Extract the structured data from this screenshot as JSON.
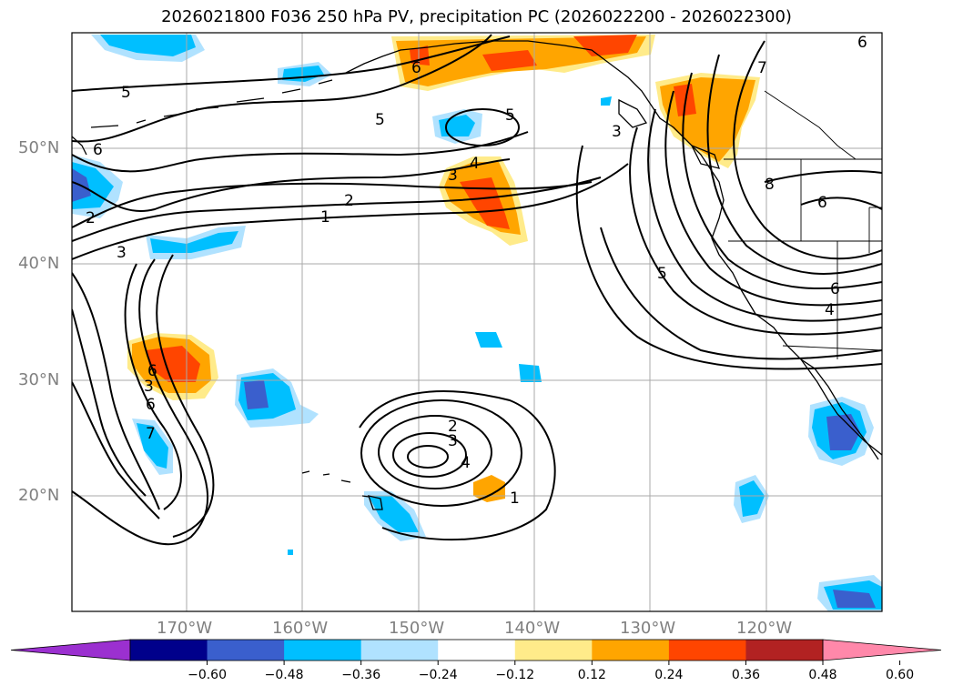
{
  "title": "2026021800 F036 250 hPa PV, precipitation PC (2026022200 - 2026022300)",
  "lat_labels": [
    "50°N",
    "40°N",
    "30°N",
    "20°N"
  ],
  "lon_labels": [
    "170°W",
    "160°W",
    "150°W",
    "140°W",
    "130°W",
    "120°W"
  ],
  "colorbar": {
    "ticks": [
      "−0.60",
      "−0.48",
      "−0.36",
      "−0.24",
      "−0.12",
      "0.12",
      "0.24",
      "0.36",
      "0.48",
      "0.60"
    ],
    "colors": [
      "#9b30d0",
      "#00008b",
      "#3a5fcd",
      "#00bfff",
      "#b0e2ff",
      "#ffffff",
      "#ffeb8a",
      "#ffa500",
      "#ff4500",
      "#b22222",
      "#ff88aa"
    ]
  },
  "contour_labels": [
    "5",
    "6",
    "5",
    "5",
    "6",
    "3",
    "6",
    "2",
    "3",
    "4",
    "2",
    "1",
    "3",
    "6",
    "8",
    "6",
    "7",
    "5",
    "6",
    "4",
    "3",
    "6",
    "7",
    "2",
    "3",
    "4",
    "1"
  ],
  "legend_notes": {
    "shading": "precipitation PC",
    "contours": "250 hPa PV"
  }
}
